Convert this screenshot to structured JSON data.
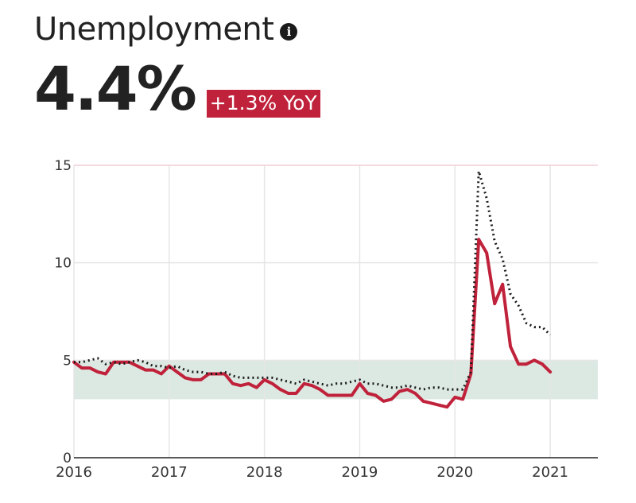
{
  "header": {
    "title": "Unemployment",
    "info_icon": "info-icon",
    "value": "4.4%",
    "badge": "+1.3% YoY",
    "badge_color": "#c0223b"
  },
  "chart_data": {
    "type": "line",
    "x_ticks": [
      "2016",
      "2017",
      "2018",
      "2019",
      "2020",
      "2021"
    ],
    "y_ticks": [
      "0",
      "5",
      "10",
      "15"
    ],
    "xlim": [
      2016.0,
      2021.5
    ],
    "ylim": [
      0,
      15
    ],
    "grid": true,
    "band": {
      "from": 3,
      "to": 5,
      "color": "#dce9e2"
    },
    "series": [
      {
        "color": "#c0223b",
        "style": "solid",
        "points": [
          [
            2016.0,
            4.9
          ],
          [
            2016.083,
            4.6
          ],
          [
            2016.167,
            4.6
          ],
          [
            2016.25,
            4.4
          ],
          [
            2016.333,
            4.3
          ],
          [
            2016.417,
            4.9
          ],
          [
            2016.5,
            4.9
          ],
          [
            2016.583,
            4.9
          ],
          [
            2016.667,
            4.7
          ],
          [
            2016.75,
            4.5
          ],
          [
            2016.833,
            4.5
          ],
          [
            2016.917,
            4.3
          ],
          [
            2017.0,
            4.7
          ],
          [
            2017.083,
            4.4
          ],
          [
            2017.167,
            4.1
          ],
          [
            2017.25,
            4.0
          ],
          [
            2017.333,
            4.0
          ],
          [
            2017.417,
            4.3
          ],
          [
            2017.5,
            4.3
          ],
          [
            2017.583,
            4.3
          ],
          [
            2017.667,
            3.8
          ],
          [
            2017.75,
            3.7
          ],
          [
            2017.833,
            3.8
          ],
          [
            2017.917,
            3.6
          ],
          [
            2018.0,
            4.0
          ],
          [
            2018.083,
            3.8
          ],
          [
            2018.167,
            3.5
          ],
          [
            2018.25,
            3.3
          ],
          [
            2018.333,
            3.3
          ],
          [
            2018.417,
            3.8
          ],
          [
            2018.5,
            3.7
          ],
          [
            2018.583,
            3.5
          ],
          [
            2018.667,
            3.2
          ],
          [
            2018.75,
            3.2
          ],
          [
            2018.833,
            3.2
          ],
          [
            2018.917,
            3.2
          ],
          [
            2019.0,
            3.8
          ],
          [
            2019.083,
            3.3
          ],
          [
            2019.167,
            3.2
          ],
          [
            2019.25,
            2.9
          ],
          [
            2019.333,
            3.0
          ],
          [
            2019.417,
            3.4
          ],
          [
            2019.5,
            3.5
          ],
          [
            2019.583,
            3.3
          ],
          [
            2019.667,
            2.9
          ],
          [
            2019.75,
            2.8
          ],
          [
            2019.833,
            2.7
          ],
          [
            2019.917,
            2.6
          ],
          [
            2020.0,
            3.1
          ],
          [
            2020.083,
            3.0
          ],
          [
            2020.167,
            4.3
          ],
          [
            2020.25,
            11.2
          ],
          [
            2020.333,
            10.5
          ],
          [
            2020.417,
            7.9
          ],
          [
            2020.5,
            8.9
          ],
          [
            2020.583,
            5.7
          ],
          [
            2020.667,
            4.8
          ],
          [
            2020.75,
            4.8
          ],
          [
            2020.833,
            5.0
          ],
          [
            2020.917,
            4.8
          ],
          [
            2021.0,
            4.4
          ]
        ]
      },
      {
        "color": "#1a1a1a",
        "style": "dotted",
        "points": [
          [
            2016.0,
            4.9
          ],
          [
            2016.083,
            4.9
          ],
          [
            2016.167,
            5.0
          ],
          [
            2016.25,
            5.1
          ],
          [
            2016.333,
            4.8
          ],
          [
            2016.417,
            4.9
          ],
          [
            2016.5,
            4.8
          ],
          [
            2016.583,
            4.9
          ],
          [
            2016.667,
            5.0
          ],
          [
            2016.75,
            4.9
          ],
          [
            2016.833,
            4.7
          ],
          [
            2016.917,
            4.7
          ],
          [
            2017.0,
            4.6
          ],
          [
            2017.083,
            4.7
          ],
          [
            2017.167,
            4.5
          ],
          [
            2017.25,
            4.4
          ],
          [
            2017.333,
            4.4
          ],
          [
            2017.417,
            4.3
          ],
          [
            2017.5,
            4.3
          ],
          [
            2017.583,
            4.4
          ],
          [
            2017.667,
            4.2
          ],
          [
            2017.75,
            4.1
          ],
          [
            2017.833,
            4.1
          ],
          [
            2017.917,
            4.1
          ],
          [
            2018.0,
            4.1
          ],
          [
            2018.083,
            4.1
          ],
          [
            2018.167,
            4.0
          ],
          [
            2018.25,
            3.9
          ],
          [
            2018.333,
            3.8
          ],
          [
            2018.417,
            4.0
          ],
          [
            2018.5,
            3.9
          ],
          [
            2018.583,
            3.8
          ],
          [
            2018.667,
            3.7
          ],
          [
            2018.75,
            3.8
          ],
          [
            2018.833,
            3.8
          ],
          [
            2018.917,
            3.9
          ],
          [
            2019.0,
            4.0
          ],
          [
            2019.083,
            3.8
          ],
          [
            2019.167,
            3.8
          ],
          [
            2019.25,
            3.7
          ],
          [
            2019.333,
            3.6
          ],
          [
            2019.417,
            3.6
          ],
          [
            2019.5,
            3.7
          ],
          [
            2019.583,
            3.6
          ],
          [
            2019.667,
            3.5
          ],
          [
            2019.75,
            3.6
          ],
          [
            2019.833,
            3.6
          ],
          [
            2019.917,
            3.5
          ],
          [
            2020.0,
            3.5
          ],
          [
            2020.083,
            3.5
          ],
          [
            2020.167,
            4.4
          ],
          [
            2020.25,
            14.7
          ],
          [
            2020.333,
            13.3
          ],
          [
            2020.417,
            11.1
          ],
          [
            2020.5,
            10.2
          ],
          [
            2020.583,
            8.4
          ],
          [
            2020.667,
            7.8
          ],
          [
            2020.75,
            6.9
          ],
          [
            2020.833,
            6.7
          ],
          [
            2020.917,
            6.7
          ],
          [
            2021.0,
            6.3
          ]
        ]
      }
    ]
  }
}
